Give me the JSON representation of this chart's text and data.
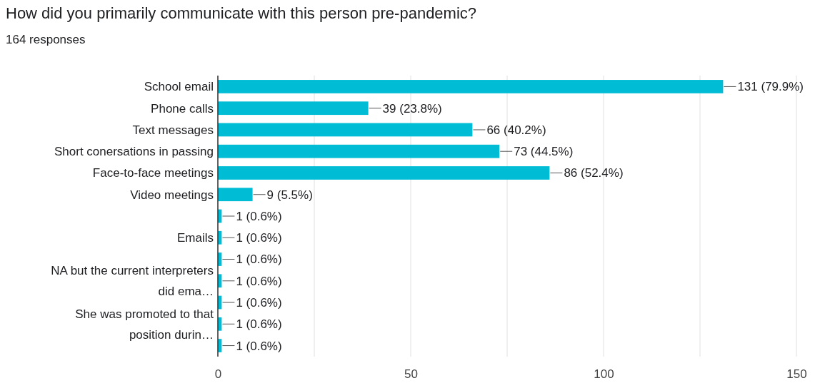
{
  "chart_data": {
    "type": "bar",
    "orientation": "horizontal",
    "title": "How did you primarily communicate with this person pre-pandemic?",
    "subtitle": "164 responses",
    "categories": [
      "School email",
      "Phone calls",
      "Text messages",
      "Short conersations in passing",
      "Face-to-face meetings",
      "Video meetings",
      null,
      "Emails",
      null,
      "NA but the current interpreters did ema…",
      null,
      "She was promoted to that position durin…",
      null
    ],
    "values": [
      131,
      39,
      66,
      73,
      86,
      9,
      1,
      1,
      1,
      1,
      1,
      1,
      1
    ],
    "value_labels": [
      "131 (79.9%)",
      "39 (23.8%)",
      "66 (40.2%)",
      "73 (44.5%)",
      "86 (52.4%)",
      "9 (5.5%)",
      "1 (0.6%)",
      "1 (0.6%)",
      "1 (0.6%)",
      "1 (0.6%)",
      "1 (0.6%)",
      "1 (0.6%)",
      "1 (0.6%)"
    ],
    "color": "#00bcd4",
    "xlim": [
      0,
      150
    ],
    "xticks": [
      0,
      {
        "value": 25,
        "label": null
      },
      50,
      {
        "value": 75,
        "label": null
      },
      100,
      {
        "value": 125,
        "label": null
      },
      150
    ],
    "grid": "x"
  }
}
